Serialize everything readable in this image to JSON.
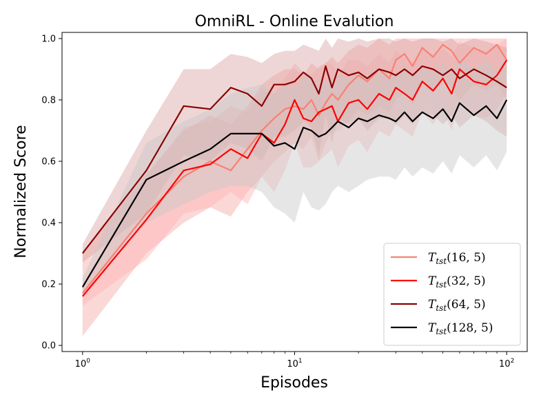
{
  "chart_data": {
    "type": "line",
    "title": "OmniRL - Online Evalution",
    "xlabel": "Episodes",
    "ylabel": "Normalized Score",
    "xscale": "log",
    "xlim": [
      0.8,
      125
    ],
    "ylim": [
      -0.02,
      1.02
    ],
    "yticks": [
      "0.0",
      "0.2",
      "0.4",
      "0.6",
      "0.8",
      "1.0"
    ],
    "xticks": [
      {
        "base": "10",
        "exp": "0",
        "value": 1
      },
      {
        "base": "10",
        "exp": "1",
        "value": 10
      },
      {
        "base": "10",
        "exp": "2",
        "value": 100
      }
    ],
    "legend_position": "lower-right",
    "series": [
      {
        "name": "T_tst(16, 5)",
        "legend": {
          "symbol": "T",
          "sub": "tst",
          "args": "(16, 5)"
        },
        "color": "#fa8072",
        "band_color": "#f4a9a3",
        "x": [
          1,
          2,
          3,
          4,
          5,
          6,
          7,
          8,
          9,
          10,
          11,
          12,
          13,
          14,
          15,
          16,
          18,
          20,
          22,
          25,
          28,
          30,
          33,
          36,
          40,
          45,
          50,
          55,
          60,
          70,
          80,
          90,
          100
        ],
        "y": [
          0.17,
          0.43,
          0.55,
          0.6,
          0.57,
          0.64,
          0.7,
          0.74,
          0.77,
          0.78,
          0.77,
          0.8,
          0.75,
          0.79,
          0.82,
          0.8,
          0.85,
          0.88,
          0.86,
          0.9,
          0.87,
          0.93,
          0.95,
          0.91,
          0.97,
          0.94,
          0.98,
          0.96,
          0.92,
          0.97,
          0.95,
          0.98,
          0.93
        ],
        "lower": [
          0.03,
          0.3,
          0.4,
          0.45,
          0.42,
          0.5,
          0.55,
          0.6,
          0.63,
          0.66,
          0.64,
          0.68,
          0.6,
          0.66,
          0.7,
          0.7,
          0.73,
          0.77,
          0.75,
          0.78,
          0.76,
          0.8,
          0.82,
          0.78,
          0.85,
          0.82,
          0.86,
          0.84,
          0.8,
          0.85,
          0.83,
          0.85,
          0.8
        ],
        "upper": [
          0.3,
          0.56,
          0.7,
          0.75,
          0.72,
          0.78,
          0.85,
          0.88,
          0.9,
          0.9,
          0.88,
          0.92,
          0.9,
          0.92,
          0.94,
          0.92,
          0.96,
          0.98,
          0.97,
          1.0,
          0.98,
          1.0,
          1.0,
          1.0,
          1.0,
          1.0,
          1.0,
          1.0,
          1.0,
          1.0,
          1.0,
          1.0,
          1.0
        ]
      },
      {
        "name": "T_tst(32, 5)",
        "legend": {
          "symbol": "T",
          "sub": "tst",
          "args": "(32, 5)"
        },
        "color": "#ff0000",
        "band_color": "#ffb3b3",
        "x": [
          1,
          2,
          3,
          4,
          5,
          6,
          7,
          8,
          9,
          10,
          11,
          12,
          13,
          14,
          15,
          16,
          18,
          20,
          22,
          25,
          28,
          30,
          33,
          36,
          40,
          45,
          50,
          55,
          60,
          70,
          80,
          90,
          100
        ],
        "y": [
          0.16,
          0.41,
          0.57,
          0.59,
          0.64,
          0.61,
          0.69,
          0.66,
          0.72,
          0.8,
          0.74,
          0.73,
          0.76,
          0.77,
          0.78,
          0.73,
          0.79,
          0.8,
          0.77,
          0.82,
          0.8,
          0.84,
          0.82,
          0.8,
          0.86,
          0.83,
          0.87,
          0.82,
          0.9,
          0.86,
          0.85,
          0.88,
          0.93
        ],
        "lower": [
          0.13,
          0.28,
          0.43,
          0.45,
          0.5,
          0.46,
          0.55,
          0.5,
          0.57,
          0.66,
          0.58,
          0.58,
          0.6,
          0.62,
          0.64,
          0.58,
          0.65,
          0.67,
          0.63,
          0.7,
          0.68,
          0.72,
          0.7,
          0.68,
          0.76,
          0.72,
          0.77,
          0.7,
          0.8,
          0.75,
          0.74,
          0.77,
          0.82
        ],
        "upper": [
          0.2,
          0.55,
          0.71,
          0.73,
          0.78,
          0.76,
          0.83,
          0.82,
          0.87,
          0.92,
          0.89,
          0.88,
          0.91,
          0.92,
          0.92,
          0.88,
          0.93,
          0.93,
          0.91,
          0.95,
          0.92,
          0.96,
          0.94,
          0.92,
          0.97,
          0.94,
          0.97,
          0.94,
          0.99,
          0.97,
          0.96,
          0.98,
          1.0
        ]
      },
      {
        "name": "T_tst(64, 5)",
        "legend": {
          "symbol": "T",
          "sub": "tst",
          "args": "(64, 5)"
        },
        "color": "#8b0000",
        "band_color": "#d9a5a5",
        "x": [
          1,
          2,
          3,
          4,
          5,
          6,
          7,
          8,
          9,
          10,
          11,
          12,
          13,
          14,
          15,
          16,
          18,
          20,
          22,
          25,
          28,
          30,
          33,
          36,
          40,
          45,
          50,
          55,
          60,
          70,
          80,
          90,
          100
        ],
        "y": [
          0.3,
          0.57,
          0.78,
          0.77,
          0.84,
          0.82,
          0.78,
          0.85,
          0.85,
          0.86,
          0.89,
          0.87,
          0.82,
          0.91,
          0.84,
          0.9,
          0.88,
          0.89,
          0.87,
          0.9,
          0.89,
          0.88,
          0.9,
          0.88,
          0.91,
          0.9,
          0.88,
          0.9,
          0.87,
          0.9,
          0.88,
          0.86,
          0.84
        ],
        "lower": [
          0.27,
          0.43,
          0.62,
          0.6,
          0.66,
          0.64,
          0.6,
          0.68,
          0.68,
          0.7,
          0.73,
          0.71,
          0.62,
          0.75,
          0.66,
          0.74,
          0.72,
          0.74,
          0.7,
          0.74,
          0.74,
          0.72,
          0.75,
          0.72,
          0.76,
          0.75,
          0.72,
          0.75,
          0.71,
          0.75,
          0.73,
          0.7,
          0.68
        ],
        "upper": [
          0.33,
          0.7,
          0.9,
          0.9,
          0.95,
          0.94,
          0.92,
          0.95,
          0.96,
          0.96,
          0.98,
          0.97,
          0.96,
          1.0,
          0.97,
          1.0,
          0.99,
          1.0,
          0.99,
          1.0,
          1.0,
          0.99,
          1.0,
          0.99,
          1.0,
          1.0,
          0.99,
          1.0,
          0.98,
          1.0,
          0.99,
          0.98,
          0.97
        ]
      },
      {
        "name": "T_tst(128, 5)",
        "legend": {
          "symbol": "T",
          "sub": "tst",
          "args": "(128, 5)"
        },
        "color": "#000000",
        "band_color": "#c8c8c8",
        "x": [
          1,
          2,
          3,
          4,
          5,
          6,
          7,
          8,
          9,
          10,
          11,
          12,
          13,
          14,
          15,
          16,
          18,
          20,
          22,
          25,
          28,
          30,
          33,
          36,
          40,
          45,
          50,
          55,
          60,
          70,
          80,
          90,
          100
        ],
        "y": [
          0.19,
          0.54,
          0.6,
          0.64,
          0.69,
          0.69,
          0.69,
          0.65,
          0.66,
          0.64,
          0.71,
          0.7,
          0.68,
          0.69,
          0.71,
          0.73,
          0.71,
          0.74,
          0.73,
          0.75,
          0.74,
          0.73,
          0.76,
          0.73,
          0.76,
          0.74,
          0.77,
          0.73,
          0.79,
          0.75,
          0.78,
          0.74,
          0.8
        ],
        "lower": [
          0.16,
          0.4,
          0.46,
          0.5,
          0.52,
          0.52,
          0.5,
          0.45,
          0.43,
          0.4,
          0.5,
          0.45,
          0.44,
          0.46,
          0.5,
          0.52,
          0.5,
          0.52,
          0.54,
          0.55,
          0.55,
          0.54,
          0.58,
          0.55,
          0.58,
          0.56,
          0.6,
          0.56,
          0.62,
          0.58,
          0.62,
          0.57,
          0.63
        ],
        "upper": [
          0.22,
          0.66,
          0.73,
          0.77,
          0.82,
          0.84,
          0.85,
          0.82,
          0.85,
          0.84,
          0.88,
          0.87,
          0.86,
          0.86,
          0.87,
          0.88,
          0.87,
          0.89,
          0.88,
          0.9,
          0.89,
          0.88,
          0.91,
          0.88,
          0.91,
          0.89,
          0.92,
          0.88,
          0.94,
          0.9,
          0.93,
          0.89,
          0.95
        ]
      }
    ]
  }
}
